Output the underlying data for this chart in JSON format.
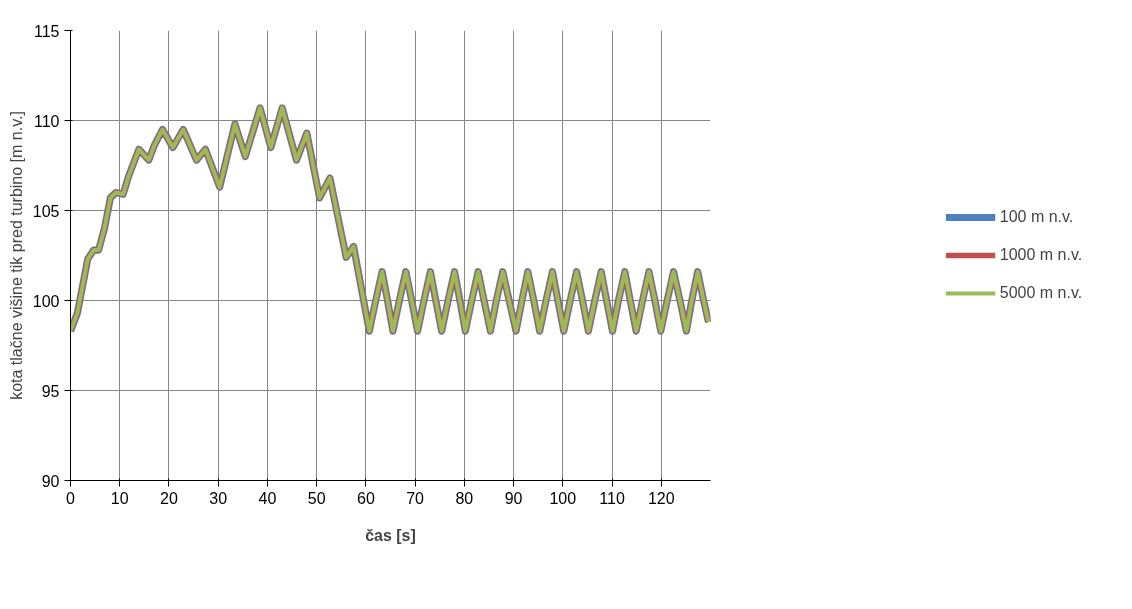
{
  "chart_data": {
    "type": "line",
    "xlabel": "čas [s]",
    "ylabel": "kota tlačne višine tik pred turbino [m n.v.]",
    "x": [
      0,
      1.4,
      3.5,
      4.7,
      5.7,
      6.9,
      8.1,
      9.2,
      10.7,
      11.8,
      13.9,
      15.9,
      17.0,
      18.7,
      20.8,
      22.9,
      25.6,
      27.4,
      30.3,
      33.4,
      35.5,
      38.5,
      40.7,
      43.0,
      45.9,
      48.0,
      50.6,
      52.7,
      56.0,
      57.5,
      60.7,
      62.0,
      63.3,
      64.4,
      65.5,
      66.8,
      68.1,
      69.3,
      70.5,
      71.8,
      73.1,
      74.2,
      75.4,
      76.7,
      78.0,
      79.1,
      80.2,
      81.5,
      82.8,
      84.0,
      85.3,
      86.5,
      87.8,
      89.1,
      90.5,
      91.7,
      92.9,
      94.1,
      95.3,
      96.6,
      97.9,
      99.0,
      100.2,
      101.5,
      102.8,
      104.0,
      105.2,
      106.5,
      107.8,
      108.9,
      110.1,
      111.3,
      112.6,
      113.7,
      114.9,
      116.2,
      117.5,
      118.7,
      119.9,
      121.2,
      122.5,
      123.8,
      125.1,
      126.2,
      127.4,
      128.6,
      129.6
    ],
    "series": [
      {
        "name": "100 m n.v.",
        "color": "#4f81bd",
        "values": [
          98.3,
          99.3,
          102.3,
          102.8,
          102.8,
          104.0,
          105.7,
          106.0,
          105.9,
          106.9,
          108.4,
          107.8,
          108.6,
          109.5,
          108.5,
          109.5,
          107.8,
          108.4,
          106.3,
          109.8,
          108.0,
          110.7,
          108.5,
          110.7,
          107.8,
          109.3,
          105.7,
          106.8,
          102.4,
          103.0,
          98.3,
          100,
          101.6,
          100,
          98.3,
          100,
          101.6,
          100,
          98.3,
          100,
          101.6,
          100,
          98.3,
          100,
          101.6,
          100,
          98.3,
          100,
          101.6,
          100,
          98.3,
          100,
          101.6,
          100,
          98.3,
          100,
          101.6,
          100,
          98.3,
          100,
          101.6,
          100,
          98.3,
          100,
          101.6,
          100,
          98.3,
          100,
          101.6,
          100,
          98.3,
          100,
          101.6,
          100,
          98.3,
          100,
          101.6,
          100,
          98.3,
          100,
          101.6,
          100,
          98.3,
          100,
          101.6,
          100,
          98.8
        ]
      },
      {
        "name": "1000 m n.v.",
        "color": "#c0504d",
        "values": [
          98.3,
          99.3,
          102.3,
          102.8,
          102.8,
          104.0,
          105.7,
          106.0,
          105.9,
          106.9,
          108.4,
          107.8,
          108.6,
          109.5,
          108.5,
          109.5,
          107.8,
          108.4,
          106.3,
          109.8,
          108.0,
          110.7,
          108.5,
          110.7,
          107.8,
          109.3,
          105.7,
          106.8,
          102.4,
          103.0,
          98.3,
          100,
          101.6,
          100,
          98.3,
          100,
          101.6,
          100,
          98.3,
          100,
          101.6,
          100,
          98.3,
          100,
          101.6,
          100,
          98.3,
          100,
          101.6,
          100,
          98.3,
          100,
          101.6,
          100,
          98.3,
          100,
          101.6,
          100,
          98.3,
          100,
          101.6,
          100,
          98.3,
          100,
          101.6,
          100,
          98.3,
          100,
          101.6,
          100,
          98.3,
          100,
          101.6,
          100,
          98.3,
          100,
          101.6,
          100,
          98.3,
          100,
          101.6,
          100,
          98.3,
          100,
          101.6,
          100,
          98.8
        ]
      },
      {
        "name": "5000 m n.v.",
        "color": "#9bbb59",
        "values": [
          98.3,
          99.3,
          102.3,
          102.8,
          102.8,
          104.0,
          105.7,
          106.0,
          105.9,
          106.9,
          108.4,
          107.8,
          108.6,
          109.5,
          108.5,
          109.5,
          107.8,
          108.4,
          106.3,
          109.8,
          108.0,
          110.7,
          108.5,
          110.7,
          107.8,
          109.3,
          105.7,
          106.8,
          102.4,
          103.0,
          98.3,
          100,
          101.6,
          100,
          98.3,
          100,
          101.6,
          100,
          98.3,
          100,
          101.6,
          100,
          98.3,
          100,
          101.6,
          100,
          98.3,
          100,
          101.6,
          100,
          98.3,
          100,
          101.6,
          100,
          98.3,
          100,
          101.6,
          100,
          98.3,
          100,
          101.6,
          100,
          98.3,
          100,
          101.6,
          100,
          98.3,
          100,
          101.6,
          100,
          98.3,
          100,
          101.6,
          100,
          98.3,
          100,
          101.6,
          100,
          98.3,
          100,
          101.6,
          100,
          98.3,
          100,
          101.6,
          100,
          98.8
        ]
      }
    ],
    "xlim": [
      0,
      130
    ],
    "xticks": [
      0,
      10,
      20,
      30,
      40,
      50,
      60,
      70,
      80,
      90,
      100,
      110,
      120
    ],
    "ylim": [
      90,
      115
    ],
    "yticks": [
      90,
      95,
      100,
      105,
      110,
      115
    ],
    "grid": true,
    "legend": "right",
    "marker": "none",
    "line_style": "solid"
  }
}
